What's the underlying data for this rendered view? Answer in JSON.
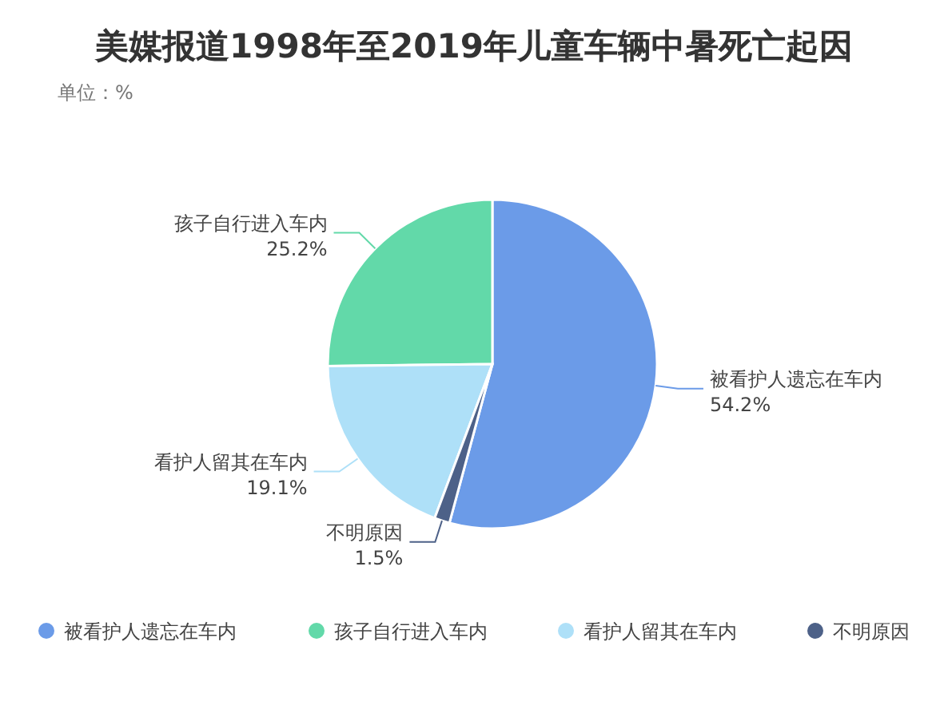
{
  "chart_data": {
    "type": "pie",
    "title": "美媒报道1998年至2019年儿童车辆中暑死亡起因",
    "subtitle": "单位：%",
    "categories": [
      "被看护人遗忘在车内",
      "孩子自行进入车内",
      "看护人留其在车内",
      "不明原因"
    ],
    "values": [
      54.2,
      25.2,
      19.1,
      1.5
    ],
    "colors": [
      "#6b9be8",
      "#62d9a9",
      "#aee0f8",
      "#4d6188"
    ],
    "value_labels": [
      "54.2%",
      "25.2%",
      "19.1%",
      "1.5%"
    ],
    "legend": "bottom"
  }
}
